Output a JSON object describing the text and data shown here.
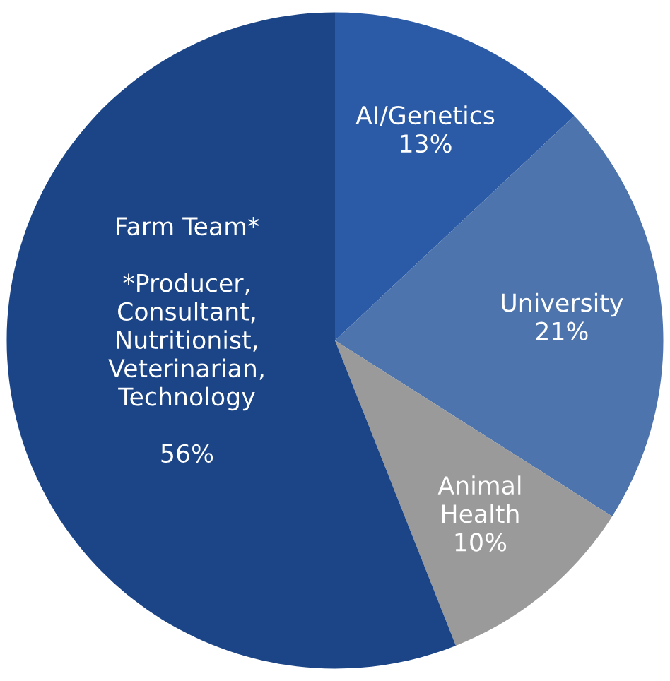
{
  "chart_data": {
    "type": "pie",
    "categories": [
      "AI/Genetics",
      "University",
      "Animal\nHealth",
      "Farm Team*"
    ],
    "values": [
      13,
      21,
      10,
      56
    ],
    "value_labels": [
      "13%",
      "21%",
      "10%",
      "56%"
    ],
    "colors": [
      "#2b5ba6",
      "#4d74ad",
      "#9a9a9a",
      "#1b4586"
    ],
    "annotations": [
      "*Producer,\nConsultant,\nNutritionist,\nVeterinarian,\nTechnology"
    ]
  }
}
